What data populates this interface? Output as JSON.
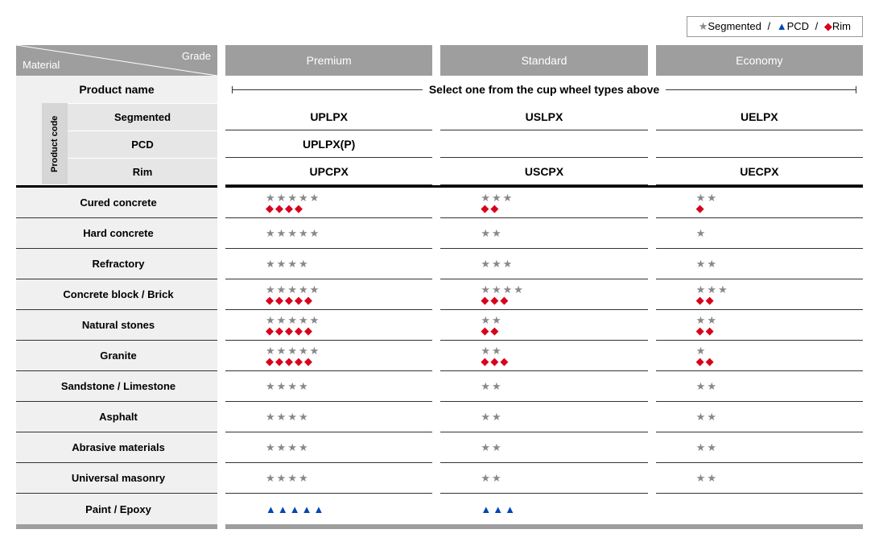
{
  "colors": {
    "header_bg": "#9e9e9e",
    "header_text": "#ffffff",
    "row_label_bg": "#f0f0f0",
    "pc_label_bg": "#d6d6d6",
    "pc_row_bg": "#e6e6e6",
    "star": "#888888",
    "triangle": "#0047b3",
    "diamond": "#d9001b",
    "divider": "#333333",
    "heavy_divider": "#000000"
  },
  "legend": {
    "segmented": "Segmented",
    "pcd": "PCD",
    "rim": "Rim",
    "sep": " / "
  },
  "header": {
    "material": "Material",
    "grade": "Grade",
    "grades": [
      "Premium",
      "Standard",
      "Economy"
    ]
  },
  "product": {
    "product_name": "Product name",
    "select_text": "Select one from the cup wheel types above",
    "product_code": "Product code",
    "rows": [
      "Segmented",
      "PCD",
      "Rim"
    ],
    "codes": {
      "Segmented": [
        "UPLPX",
        "USLPX",
        "UELPX"
      ],
      "PCD": [
        "UPLPX(P)",
        "",
        ""
      ],
      "Rim": [
        "UPCPX",
        "USCPX",
        "UECPX"
      ]
    }
  },
  "materials": [
    {
      "name": "Cured concrete",
      "ratings": [
        {
          "star": 5,
          "dia": 4
        },
        {
          "star": 3,
          "dia": 2
        },
        {
          "star": 2,
          "dia": 1
        }
      ]
    },
    {
      "name": "Hard concrete",
      "ratings": [
        {
          "star": 5
        },
        {
          "star": 2
        },
        {
          "star": 1
        }
      ]
    },
    {
      "name": "Refractory",
      "ratings": [
        {
          "star": 4
        },
        {
          "star": 3
        },
        {
          "star": 2
        }
      ]
    },
    {
      "name": "Concrete block / Brick",
      "ratings": [
        {
          "star": 5,
          "dia": 5
        },
        {
          "star": 4,
          "dia": 3
        },
        {
          "star": 3,
          "dia": 2
        }
      ]
    },
    {
      "name": "Natural stones",
      "ratings": [
        {
          "star": 5,
          "dia": 5
        },
        {
          "star": 2,
          "dia": 2
        },
        {
          "star": 2,
          "dia": 2
        }
      ]
    },
    {
      "name": "Granite",
      "ratings": [
        {
          "star": 5,
          "dia": 5
        },
        {
          "star": 2,
          "dia": 3
        },
        {
          "star": 1,
          "dia": 2
        }
      ]
    },
    {
      "name": "Sandstone / Limestone",
      "ratings": [
        {
          "star": 4
        },
        {
          "star": 2
        },
        {
          "star": 2
        }
      ]
    },
    {
      "name": "Asphalt",
      "ratings": [
        {
          "star": 4
        },
        {
          "star": 2
        },
        {
          "star": 2
        }
      ]
    },
    {
      "name": "Abrasive materials",
      "ratings": [
        {
          "star": 4
        },
        {
          "star": 2
        },
        {
          "star": 2
        }
      ]
    },
    {
      "name": "Universal masonry",
      "ratings": [
        {
          "star": 4
        },
        {
          "star": 2
        },
        {
          "star": 2
        }
      ]
    },
    {
      "name": "Paint / Epoxy",
      "ratings": [
        {
          "tri": 5
        },
        {
          "tri": 3
        },
        {}
      ]
    }
  ],
  "symbols": {
    "star": "★",
    "triangle": "▲",
    "diamond": "◆"
  }
}
